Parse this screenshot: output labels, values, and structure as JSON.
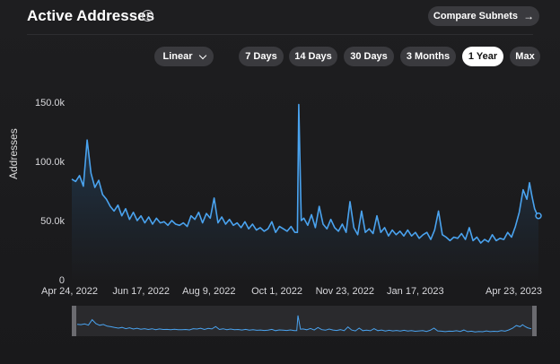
{
  "header": {
    "title": "Active Addresses",
    "compare_label": "Compare Subnets"
  },
  "controls": {
    "scale_label": "Linear",
    "ranges": [
      {
        "label": "7 Days",
        "active": false
      },
      {
        "label": "14 Days",
        "active": false
      },
      {
        "label": "30 Days",
        "active": false
      },
      {
        "label": "3 Months",
        "active": false
      },
      {
        "label": "1 Year",
        "active": true
      },
      {
        "label": "Max",
        "active": false
      }
    ]
  },
  "colors": {
    "line": "#4aa3ef",
    "fill_top": "#23415e",
    "background": "#1b1b1d"
  },
  "chart_data": {
    "type": "area",
    "ylabel": "Addresses",
    "xlabel": "",
    "ylim": [
      0,
      150000
    ],
    "y_ticks": [
      "0",
      "50.0k",
      "100.0k",
      "150.0k"
    ],
    "x_ticks": [
      "Apr 24, 2022",
      "Jun 17, 2022",
      "Aug 9, 2022",
      "Oct 1, 2022",
      "Nov 23, 2022",
      "Jan 17, 2023",
      "Apr 23, 2023"
    ],
    "x_days": [
      0,
      54,
      107,
      160,
      213,
      268,
      364
    ],
    "series": [
      {
        "points": [
          [
            0,
            85000
          ],
          [
            3,
            83000
          ],
          [
            6,
            88000
          ],
          [
            9,
            79000
          ],
          [
            12,
            118000
          ],
          [
            15,
            90000
          ],
          [
            18,
            78000
          ],
          [
            21,
            84000
          ],
          [
            24,
            72000
          ],
          [
            27,
            68000
          ],
          [
            30,
            62000
          ],
          [
            33,
            58000
          ],
          [
            36,
            63000
          ],
          [
            39,
            54000
          ],
          [
            42,
            60000
          ],
          [
            45,
            51000
          ],
          [
            48,
            57000
          ],
          [
            51,
            50000
          ],
          [
            54,
            54000
          ],
          [
            57,
            48000
          ],
          [
            60,
            53000
          ],
          [
            63,
            47000
          ],
          [
            66,
            52000
          ],
          [
            69,
            48000
          ],
          [
            72,
            49000
          ],
          [
            75,
            46000
          ],
          [
            78,
            50000
          ],
          [
            81,
            47000
          ],
          [
            84,
            46000
          ],
          [
            87,
            48000
          ],
          [
            90,
            45000
          ],
          [
            93,
            54000
          ],
          [
            96,
            51000
          ],
          [
            99,
            57000
          ],
          [
            102,
            48000
          ],
          [
            105,
            56000
          ],
          [
            108,
            52000
          ],
          [
            111,
            69000
          ],
          [
            114,
            48000
          ],
          [
            117,
            53000
          ],
          [
            120,
            47000
          ],
          [
            123,
            51000
          ],
          [
            126,
            46000
          ],
          [
            129,
            48000
          ],
          [
            132,
            44000
          ],
          [
            135,
            49000
          ],
          [
            138,
            43000
          ],
          [
            141,
            47000
          ],
          [
            144,
            42000
          ],
          [
            147,
            44000
          ],
          [
            150,
            41000
          ],
          [
            153,
            43000
          ],
          [
            156,
            49000
          ],
          [
            159,
            40000
          ],
          [
            162,
            45000
          ],
          [
            165,
            43000
          ],
          [
            168,
            41000
          ],
          [
            171,
            45000
          ],
          [
            174,
            40000
          ],
          [
            176,
            40000
          ],
          [
            177,
            148000
          ],
          [
            179,
            50000
          ],
          [
            181,
            52000
          ],
          [
            184,
            46000
          ],
          [
            187,
            55000
          ],
          [
            190,
            44000
          ],
          [
            193,
            62000
          ],
          [
            196,
            47000
          ],
          [
            199,
            43000
          ],
          [
            202,
            51000
          ],
          [
            205,
            44000
          ],
          [
            208,
            41000
          ],
          [
            211,
            47000
          ],
          [
            214,
            40000
          ],
          [
            217,
            66000
          ],
          [
            220,
            44000
          ],
          [
            223,
            38000
          ],
          [
            226,
            58000
          ],
          [
            229,
            40000
          ],
          [
            232,
            43000
          ],
          [
            235,
            39000
          ],
          [
            238,
            54000
          ],
          [
            241,
            40000
          ],
          [
            244,
            44000
          ],
          [
            247,
            37000
          ],
          [
            250,
            42000
          ],
          [
            253,
            38000
          ],
          [
            256,
            41000
          ],
          [
            259,
            37000
          ],
          [
            262,
            42000
          ],
          [
            265,
            37000
          ],
          [
            268,
            40000
          ],
          [
            271,
            35000
          ],
          [
            274,
            38000
          ],
          [
            277,
            40000
          ],
          [
            280,
            34000
          ],
          [
            283,
            42000
          ],
          [
            286,
            58000
          ],
          [
            289,
            38000
          ],
          [
            292,
            36000
          ],
          [
            295,
            33000
          ],
          [
            298,
            36000
          ],
          [
            301,
            35000
          ],
          [
            304,
            39000
          ],
          [
            307,
            34000
          ],
          [
            310,
            44000
          ],
          [
            313,
            33000
          ],
          [
            316,
            36000
          ],
          [
            319,
            31000
          ],
          [
            322,
            34000
          ],
          [
            325,
            32000
          ],
          [
            328,
            38000
          ],
          [
            331,
            33000
          ],
          [
            334,
            35000
          ],
          [
            337,
            34000
          ],
          [
            340,
            40000
          ],
          [
            343,
            36000
          ],
          [
            346,
            45000
          ],
          [
            349,
            57000
          ],
          [
            352,
            76000
          ],
          [
            355,
            68000
          ],
          [
            357,
            82000
          ],
          [
            359,
            70000
          ],
          [
            361,
            60000
          ],
          [
            363,
            55000
          ],
          [
            364,
            54000
          ]
        ]
      }
    ]
  }
}
